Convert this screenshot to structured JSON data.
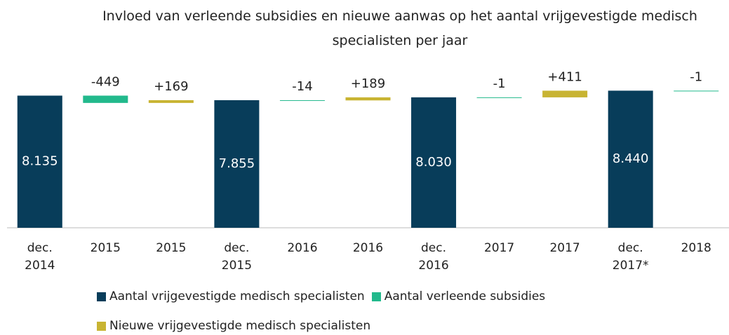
{
  "chart_data": {
    "type": "waterfall",
    "title": "Invloed van verleende subsidies en nieuwe aanwas op het aantal vrijgevestigde medisch specialisten per jaar",
    "categories": [
      "dec. 2014",
      "2015",
      "2015",
      "dec. 2015",
      "2016",
      "2016",
      "dec. 2016",
      "2017",
      "2017",
      "dec. 2017*",
      "2018"
    ],
    "values": [
      8135,
      -449,
      169,
      7855,
      -14,
      189,
      8030,
      -1,
      411,
      8440,
      -1
    ],
    "value_labels": [
      "8.135",
      "-449",
      "+169",
      "7.855",
      "-14",
      "+189",
      "8.030",
      "-1",
      "+411",
      "8.440",
      "-1"
    ],
    "kinds": [
      0,
      1,
      2,
      0,
      1,
      2,
      0,
      1,
      2,
      0,
      1
    ],
    "legend": [
      {
        "name": "Aantal vrijgevestigde medisch specialisten",
        "color": "#083d5a"
      },
      {
        "name": "Aantal verleende subsidies",
        "color": "#22b98c"
      },
      {
        "name": "Nieuwe vrijgevestigde medisch specialisten",
        "color": "#c8b432"
      }
    ],
    "ylim": [
      0,
      8500
    ]
  }
}
